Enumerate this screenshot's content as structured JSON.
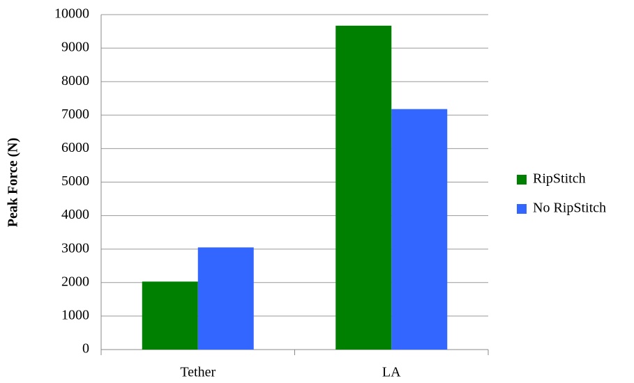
{
  "chart_data": {
    "type": "bar",
    "y_axis_label": "Peak Force (N)",
    "categories": [
      "Tether",
      "LA"
    ],
    "series": [
      {
        "name": "RipStitch",
        "color": "#008000",
        "values": [
          2030,
          9670
        ]
      },
      {
        "name": "No RipStitch",
        "color": "#3366ff",
        "values": [
          3050,
          7180
        ]
      }
    ],
    "ylim": [
      0,
      10000
    ],
    "yticks": [
      0,
      1000,
      2000,
      3000,
      4000,
      5000,
      6000,
      7000,
      8000,
      9000,
      10000
    ],
    "grid": true,
    "legend": "right"
  }
}
